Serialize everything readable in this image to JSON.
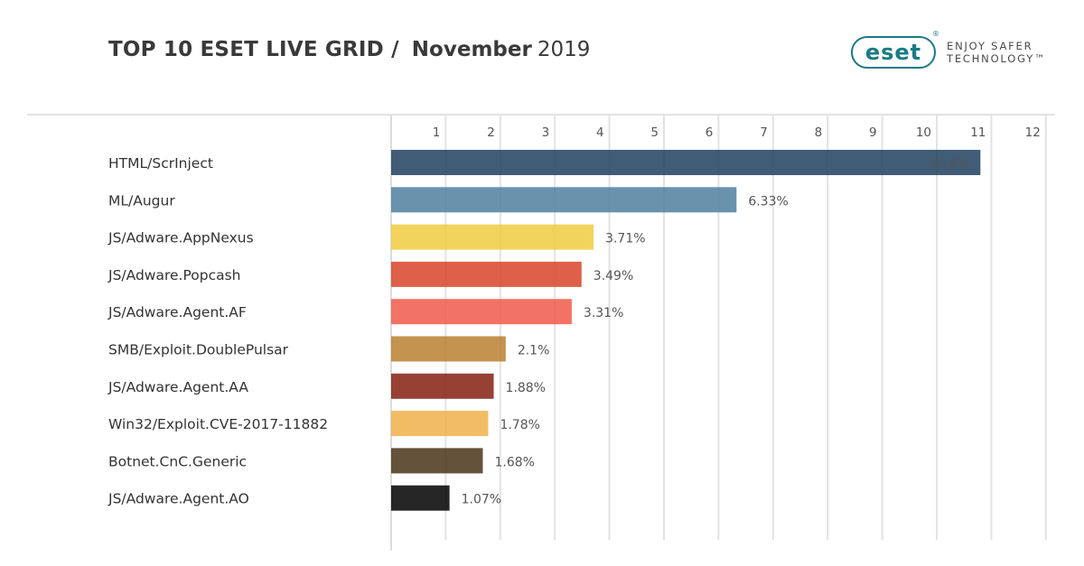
{
  "header": {
    "title_main": "TOP 10 ESET LIVE GRID /",
    "title_month": "November",
    "title_year": "2019"
  },
  "logo": {
    "mark": "eset",
    "reg": "®",
    "tagline_1": "ENJOY SAFER",
    "tagline_2": "TECHNOLOGY™"
  },
  "chart_data": {
    "type": "bar",
    "orientation": "horizontal",
    "title": "TOP 10 ESET LIVE GRID / November 2019",
    "xlabel": "",
    "ylabel": "",
    "xlim": [
      0,
      12
    ],
    "x_ticks": [
      1,
      2,
      3,
      4,
      5,
      6,
      7,
      8,
      9,
      10,
      11,
      12
    ],
    "grid": true,
    "categories": [
      "HTML/ScrInject",
      "ML/Augur",
      "JS/Adware.AppNexus",
      "JS/Adware.Popcash",
      "JS/Adware.Agent.AF",
      "SMB/Exploit.DoublePulsar",
      "JS/Adware.Agent.AA",
      "Win32/Exploit.CVE-2017-11882",
      "Botnet.CnC.Generic",
      "JS/Adware.Agent.AO"
    ],
    "values": [
      10.8,
      6.33,
      3.71,
      3.49,
      3.31,
      2.1,
      1.88,
      1.78,
      1.68,
      1.07
    ],
    "value_labels": [
      "10.8%",
      "6.33%",
      "3.71%",
      "3.49%",
      "3.31%",
      "2.1%",
      "1.88%",
      "1.78%",
      "1.68%",
      "1.07%"
    ],
    "colors": [
      "#1f3f5f",
      "#4f7f9f",
      "#f0cc40",
      "#d84428",
      "#f05a4a",
      "#b88030",
      "#842010",
      "#f0b04a",
      "#4a3418",
      "#000000"
    ],
    "label_inside": [
      true,
      false,
      false,
      false,
      false,
      false,
      false,
      false,
      false,
      false
    ]
  }
}
